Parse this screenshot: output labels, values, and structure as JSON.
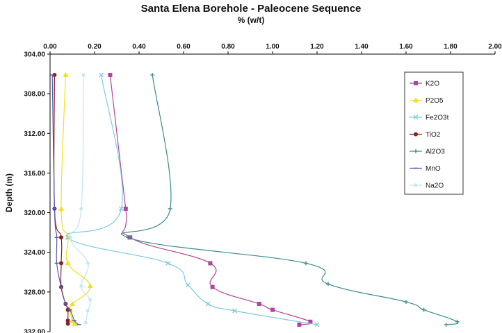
{
  "chart_data": {
    "type": "line",
    "title": "Santa Elena Borehole - Paleocene Sequence",
    "xlabel": "% (w/t)",
    "ylabel": "Depth (m)",
    "x_axis_position": "top",
    "y_reversed": true,
    "xlim": [
      0,
      2
    ],
    "ylim": [
      304,
      332
    ],
    "xticks": [
      "0.00",
      "0.20",
      "0.40",
      "0.60",
      "0.80",
      "1.00",
      "1.20",
      "1.40",
      "1.60",
      "1.80",
      "2.00"
    ],
    "yticks": [
      "304.00",
      "308.00",
      "312.00",
      "316.00",
      "320.00",
      "324.00",
      "328.00",
      "332.00"
    ],
    "grid": false,
    "legend_position": "right",
    "series": [
      {
        "name": "K2O",
        "color": "#b2449b",
        "marker": "square",
        "points": [
          [
            0.27,
            306.1
          ],
          [
            0.34,
            319.6
          ],
          [
            0.36,
            322.5
          ],
          [
            0.72,
            325.1
          ],
          [
            0.73,
            327.5
          ],
          [
            0.94,
            329.2
          ],
          [
            1.0,
            329.8
          ],
          [
            1.17,
            331.0
          ],
          [
            1.12,
            331.3
          ]
        ]
      },
      {
        "name": "P2O5",
        "color": "#f2e01a",
        "marker": "triangle",
        "points": [
          [
            0.07,
            306.1
          ],
          [
            0.05,
            319.6
          ],
          [
            0.08,
            322.5
          ],
          [
            0.08,
            325.1
          ],
          [
            0.18,
            327.4
          ],
          [
            0.1,
            329.2
          ],
          [
            0.09,
            329.8
          ],
          [
            0.1,
            330.9
          ],
          [
            0.11,
            331.2
          ]
        ]
      },
      {
        "name": "Fe2O3t",
        "color": "#7fc8e6",
        "marker": "x",
        "points": [
          [
            0.23,
            306.1
          ],
          [
            0.32,
            319.6
          ],
          [
            0.08,
            322.5
          ],
          [
            0.53,
            325.1
          ],
          [
            0.62,
            327.3
          ],
          [
            0.71,
            329.2
          ],
          [
            0.83,
            329.9
          ],
          [
            1.2,
            331.3
          ]
        ]
      },
      {
        "name": "TiO2",
        "color": "#8a2020",
        "marker": "circle",
        "points": [
          [
            0.02,
            306.1
          ],
          [
            0.02,
            319.6
          ],
          [
            0.05,
            322.5
          ],
          [
            0.05,
            325.1
          ],
          [
            0.05,
            327.5
          ],
          [
            0.07,
            329.2
          ],
          [
            0.08,
            329.8
          ],
          [
            0.08,
            330.9
          ],
          [
            0.08,
            331.2
          ]
        ]
      },
      {
        "name": "Al2O3",
        "color": "#3c8c8c",
        "marker": "plus",
        "points": [
          [
            0.46,
            306.1
          ],
          [
            0.54,
            319.6
          ],
          [
            0.35,
            322.5
          ],
          [
            1.15,
            325.1
          ],
          [
            1.25,
            327.2
          ],
          [
            1.6,
            329.0
          ],
          [
            1.68,
            329.8
          ],
          [
            1.83,
            331.0
          ],
          [
            1.78,
            331.3
          ]
        ]
      },
      {
        "name": "MnO",
        "color": "#5a5ab4",
        "marker": "dash",
        "points": [
          [
            0.01,
            306.1
          ],
          [
            0.02,
            319.6
          ],
          [
            0.03,
            322.5
          ],
          [
            0.03,
            325.1
          ],
          [
            0.05,
            327.5
          ],
          [
            0.07,
            329.2
          ],
          [
            0.09,
            329.8
          ],
          [
            0.11,
            330.9
          ],
          [
            0.13,
            331.3
          ]
        ]
      },
      {
        "name": "Na2O",
        "color": "#bfe6f2",
        "marker": "star",
        "points": [
          [
            0.15,
            306.1
          ],
          [
            0.14,
            319.6
          ],
          [
            0.09,
            322.5
          ],
          [
            0.17,
            325.1
          ],
          [
            0.14,
            327.4
          ],
          [
            0.18,
            328.8
          ],
          [
            0.17,
            329.9
          ],
          [
            0.16,
            331.1
          ]
        ]
      }
    ]
  }
}
